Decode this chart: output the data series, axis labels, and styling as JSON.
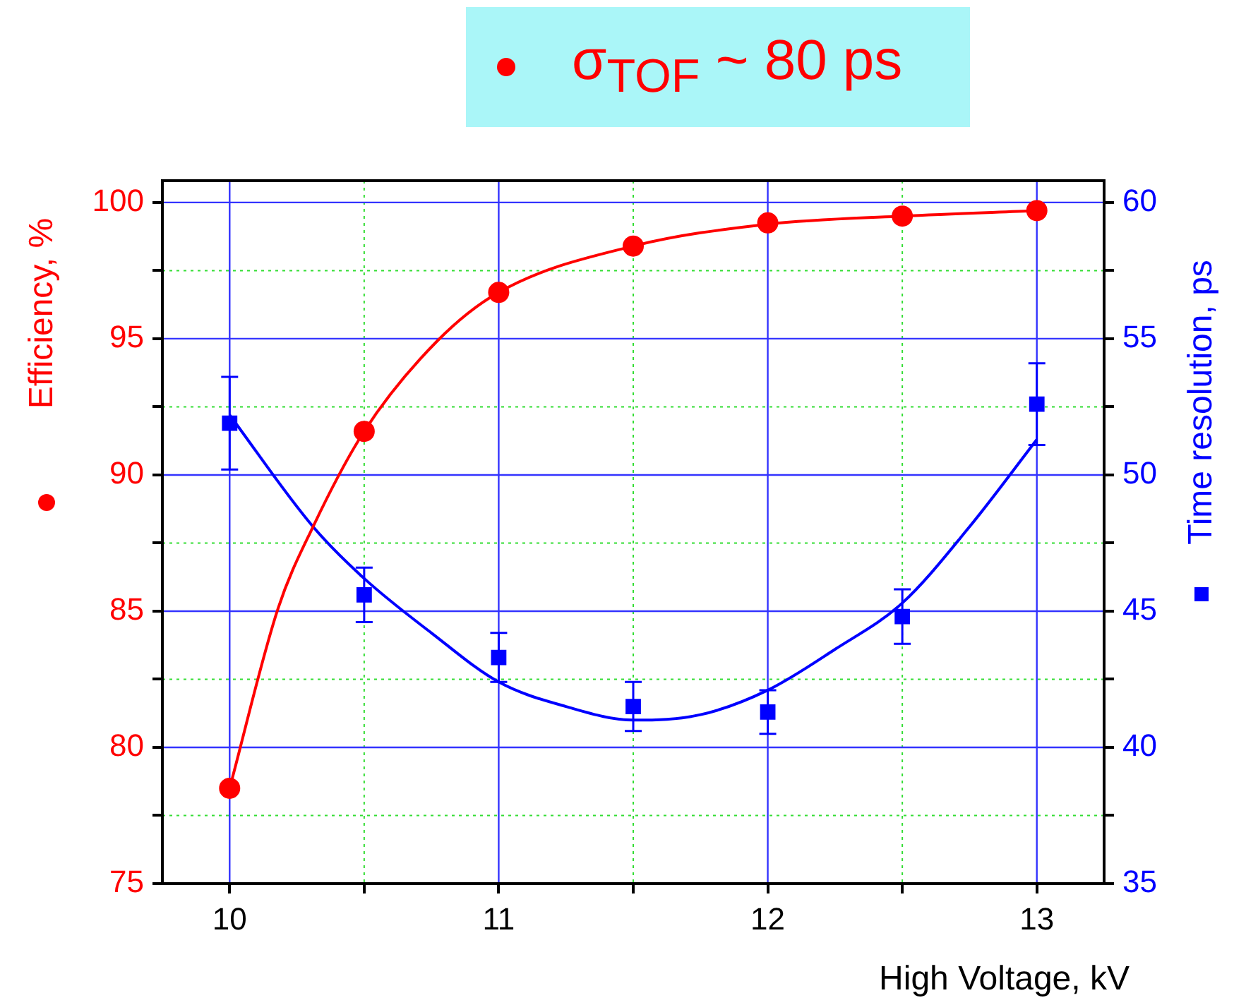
{
  "chart_data": {
    "type": "scatter",
    "title": "σ$_{TOF}$ ~ 80 ps",
    "xlabel": "High Voltage, kV",
    "ylabel": "Efficiency, %",
    "y2label": "Time resolution, ps",
    "x": [
      10,
      10.5,
      11,
      11.5,
      12,
      12.5,
      13
    ],
    "series": [
      {
        "type": "scatter",
        "color": "#ff0000",
        "marker": "circle",
        "values": [
          78.5,
          91.6,
          96.7,
          98.4,
          99.25,
          99.5,
          99.7
        ]
      },
      {
        "type": "scatter",
        "color": "#0000ff",
        "marker": "square",
        "axis": "y2",
        "values": [
          51.9,
          45.6,
          43.3,
          41.5,
          41.3,
          44.8,
          52.6
        ],
        "errors": [
          1.7,
          1.0,
          0.9,
          0.9,
          0.8,
          1.0,
          1.5
        ]
      },
      {
        "type": "line",
        "color": "#ff0000",
        "marker": "none",
        "x": [
          10,
          10.18,
          10.31,
          10.5,
          10.77,
          11,
          11.5,
          12,
          12.5,
          13
        ],
        "values": [
          78.5,
          85.1,
          88.1,
          91.6,
          94.9,
          96.7,
          98.4,
          99.2,
          99.5,
          99.7
        ]
      },
      {
        "type": "line",
        "color": "#0000ff",
        "marker": "none",
        "axis": "y2",
        "x": [
          10,
          10.31,
          10.5,
          10.75,
          11,
          11.25,
          11.5,
          11.75,
          12,
          12.25,
          12.5,
          12.75,
          13
        ],
        "values": [
          52.2,
          48.1,
          46.2,
          44.2,
          42.4,
          41.5,
          41.0,
          41.2,
          42.1,
          43.6,
          45.3,
          48.1,
          51.3
        ]
      }
    ],
    "xlim": [
      9.75,
      13.25
    ],
    "xticks": [
      10,
      {
        "value": 10.5,
        "label": null
      },
      11,
      {
        "value": 11.5,
        "label": null
      },
      12,
      {
        "value": 12.5,
        "label": null
      },
      13
    ],
    "ylim": [
      75,
      100.8
    ],
    "yticks": [
      75,
      {
        "value": 77.5,
        "label": null
      },
      80,
      {
        "value": 82.5,
        "label": null
      },
      85,
      {
        "value": 87.5,
        "label": null
      },
      90,
      {
        "value": 92.5,
        "label": null
      },
      95,
      {
        "value": 97.5,
        "label": null
      },
      100
    ],
    "y2lim": [
      35,
      60.8
    ],
    "y2ticks": [
      35,
      {
        "value": 37.5,
        "label": null
      },
      40,
      {
        "value": 42.5,
        "label": null
      },
      45,
      {
        "value": 47.5,
        "label": null
      },
      50,
      {
        "value": 52.5,
        "label": null
      },
      55,
      {
        "value": 57.5,
        "label": null
      },
      60
    ],
    "grid": true,
    "legend": false
  }
}
